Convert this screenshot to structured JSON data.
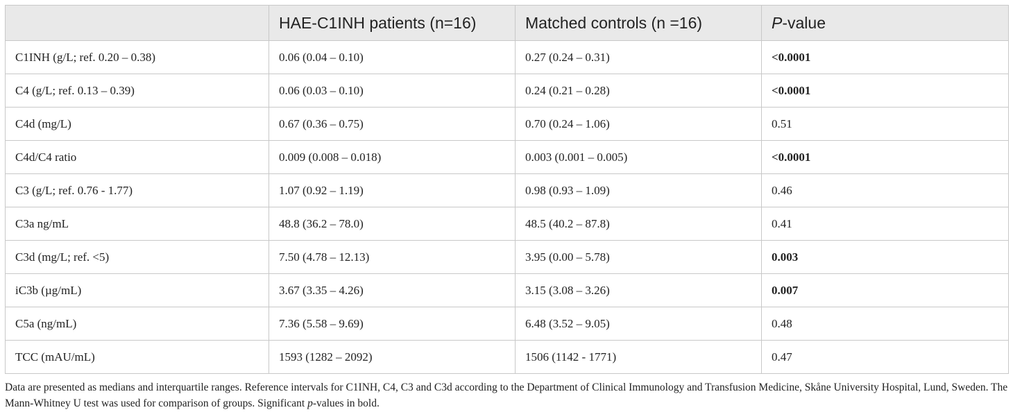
{
  "table": {
    "headers": {
      "col1": "",
      "col2": "HAE-C1INH patients (n=16)",
      "col3": "Matched controls (n =16)",
      "col4_italic": "P",
      "col4_rest": "-value"
    },
    "rows": [
      {
        "label": "C1INH (g/L; ref. 0.20 – 0.38)",
        "patients": "0.06 (0.04 – 0.10)",
        "controls": "0.27 (0.24 – 0.31)",
        "p": "<0.0001",
        "significant": true
      },
      {
        "label": "C4 (g/L; ref. 0.13 – 0.39)",
        "patients": "0.06 (0.03 – 0.10)",
        "controls": "0.24 (0.21 – 0.28)",
        "p": "<0.0001",
        "significant": true
      },
      {
        "label": "C4d (mg/L)",
        "patients": "0.67 (0.36 – 0.75)",
        "controls": "0.70 (0.24 – 1.06)",
        "p": "0.51",
        "significant": false
      },
      {
        "label": "C4d/C4 ratio",
        "patients": "0.009 (0.008 – 0.018)",
        "controls": "0.003 (0.001 – 0.005)",
        "p": "<0.0001",
        "significant": true
      },
      {
        "label": "C3 (g/L; ref. 0.76 - 1.77)",
        "patients": "1.07 (0.92 – 1.19)",
        "controls": "0.98 (0.93 – 1.09)",
        "p": "0.46",
        "significant": false
      },
      {
        "label": "C3a ng/mL",
        "patients": "48.8 (36.2 – 78.0)",
        "controls": "48.5 (40.2 – 87.8)",
        "p": "0.41",
        "significant": false
      },
      {
        "label": "C3d (mg/L; ref. <5)",
        "patients": "7.50 (4.78 – 12.13)",
        "controls": "3.95 (0.00 – 5.78)",
        "p": "0.003",
        "significant": true
      },
      {
        "label": "iC3b (µg/mL)",
        "patients": "3.67 (3.35 – 4.26)",
        "controls": "3.15 (3.08 – 3.26)",
        "p": "0.007",
        "significant": true
      },
      {
        "label": "C5a (ng/mL)",
        "patients": "7.36 (5.58 – 9.69)",
        "controls": "6.48 (3.52 – 9.05)",
        "p": "0.48",
        "significant": false
      },
      {
        "label": "TCC (mAU/mL)",
        "patients": "1593 (1282 – 2092)",
        "controls": "1506 (1142 - 1771)",
        "p": "0.47",
        "significant": false
      }
    ]
  },
  "footnote": {
    "part1": "Data are presented as medians and interquartile ranges. Reference intervals for C1INH, C4, C3 and C3d according to the Department of Clinical Immunology and Transfusion Medicine, Skåne University Hospital, Lund, Sweden. The Mann-Whitney U test was used for comparison of groups. Significant ",
    "italic": "p",
    "part2": "-values in bold."
  }
}
